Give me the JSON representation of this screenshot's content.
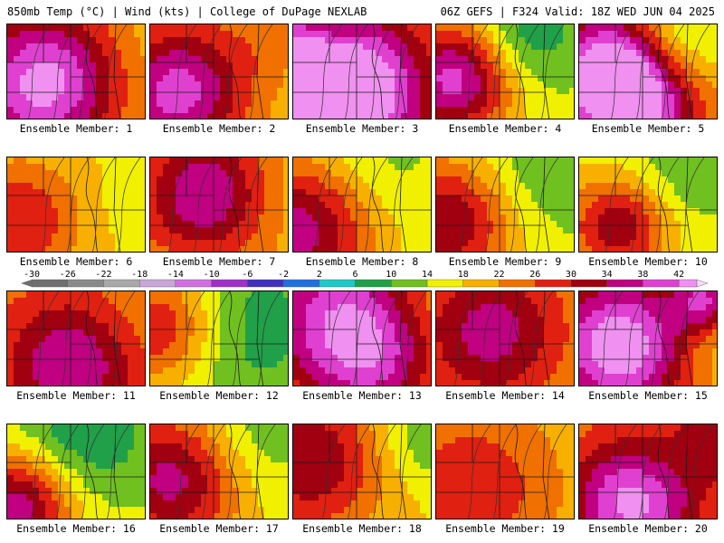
{
  "header": {
    "left": "850mb Temp (°C) | Wind (kts) | College of DuPage NEXLAB",
    "right": "06Z GEFS | F324 Valid: 18Z WED JUN 04 2025"
  },
  "panel_label_prefix": "Ensemble Member: ",
  "members": [
    1,
    2,
    3,
    4,
    5,
    6,
    7,
    8,
    9,
    10,
    11,
    12,
    13,
    14,
    15,
    16,
    17,
    18,
    19,
    20
  ],
  "colorbar": {
    "tick_labels": [
      -30,
      -26,
      -22,
      -18,
      -14,
      -10,
      -6,
      -2,
      2,
      6,
      10,
      14,
      18,
      22,
      26,
      30,
      34,
      38,
      42
    ],
    "range": [
      -30,
      44
    ],
    "colors": [
      {
        "v": -30,
        "c": "#6f6f6f"
      },
      {
        "v": -26,
        "c": "#8a8a8a"
      },
      {
        "v": -22,
        "c": "#a8a8a8"
      },
      {
        "v": -18,
        "c": "#c8a6d8"
      },
      {
        "v": -14,
        "c": "#d070e0"
      },
      {
        "v": -10,
        "c": "#a030c8"
      },
      {
        "v": -6,
        "c": "#4030c0"
      },
      {
        "v": -2,
        "c": "#2070e0"
      },
      {
        "v": 2,
        "c": "#20c8c8"
      },
      {
        "v": 6,
        "c": "#20a048"
      },
      {
        "v": 10,
        "c": "#70c020"
      },
      {
        "v": 14,
        "c": "#f0f000"
      },
      {
        "v": 18,
        "c": "#f8b000"
      },
      {
        "v": 22,
        "c": "#f07000"
      },
      {
        "v": 26,
        "c": "#e02010"
      },
      {
        "v": 30,
        "c": "#a00010"
      },
      {
        "v": 34,
        "c": "#c00080"
      },
      {
        "v": 38,
        "c": "#e040d0"
      },
      {
        "v": 42,
        "c": "#f090f0"
      }
    ]
  }
}
